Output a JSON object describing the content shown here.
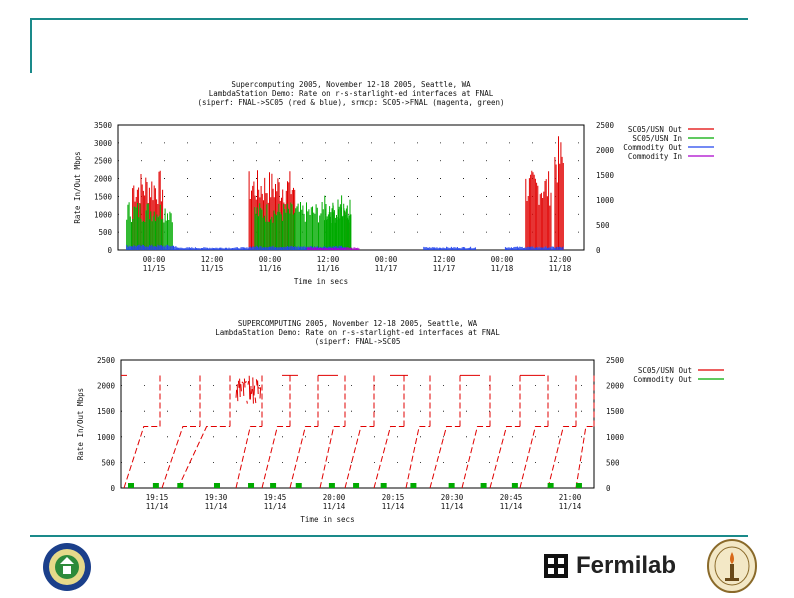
{
  "colors": {
    "accent_rule": "#1a8a8a",
    "red": "#e00000",
    "green": "#00aa00",
    "blue": "#2244ee",
    "magenta": "#aa00cc"
  },
  "footer": {
    "lab_name": "Fermilab"
  },
  "chart_data": [
    {
      "type": "line",
      "title_lines": [
        "Supercomputing 2005, November 12-18 2005, Seattle, WA",
        "LambdaStation Demo: Rate on r-s-starlight-ed interfaces at FNAL",
        "(siperf: FNAL->SC05 (red & blue), srmcp: SC05->FNAL (magenta, green)"
      ],
      "ylabel": "Rate In/Out Mbps",
      "xlabel": "Time in secs",
      "ylim": [
        0,
        3500
      ],
      "y2lim": [
        0,
        2500
      ],
      "yticks": [
        "3500",
        "3000",
        "2500",
        "2000",
        "1500",
        "1000",
        "500",
        "0"
      ],
      "y2ticks": [
        "2500",
        "2000",
        "1500",
        "1000",
        "500",
        "0"
      ],
      "xticks": [
        {
          "time": "00:00",
          "date": "11/15"
        },
        {
          "time": "12:00",
          "date": "11/15"
        },
        {
          "time": "00:00",
          "date": "11/16"
        },
        {
          "time": "12:00",
          "date": "11/16"
        },
        {
          "time": "00:00",
          "date": "11/17"
        },
        {
          "time": "12:00",
          "date": "11/17"
        },
        {
          "time": "00:00",
          "date": "11/18"
        },
        {
          "time": "12:00",
          "date": "11/18"
        }
      ],
      "series": [
        {
          "name": "SC05/USN Out",
          "color": "#e00000",
          "bursts": [
            [
              0.5,
              1.55,
              2250
            ],
            [
              4.5,
              6.1,
              2250
            ],
            [
              7.8,
              8.0,
              1150
            ],
            [
              14.0,
              14.9,
              2250
            ],
            [
              15.0,
              15.3,
              3200
            ]
          ]
        },
        {
          "name": "SC05/USN In",
          "color": "#00aa00",
          "bursts": [
            [
              0.3,
              1.9,
              1400
            ],
            [
              4.7,
              8.0,
              1350
            ],
            [
              7.1,
              8.0,
              1600
            ]
          ]
        },
        {
          "name": "Commodity Out",
          "color": "#2244ee",
          "bursts": [
            [
              0.3,
              2.0,
              150
            ],
            [
              2.0,
              4.5,
              80
            ],
            [
              4.5,
              7.8,
              120
            ],
            [
              10.5,
              12.3,
              90
            ],
            [
              13.3,
              15.3,
              100
            ]
          ]
        },
        {
          "name": "Commodity In",
          "color": "#aa00cc",
          "bursts": [
            [
              6.5,
              8.3,
              80
            ]
          ]
        }
      ]
    },
    {
      "type": "line",
      "title_lines": [
        "SUPERCOMPUTING 2005, November 12-18 2005, Seattle, WA",
        "LambdaStation Demo: Rate on r-s-starlight-ed interfaces at FNAL",
        "(siperf: FNAL->SC05"
      ],
      "ylabel": "Rate In/Out Mbps",
      "xlabel": "Time in secs",
      "ylim": [
        0,
        2500
      ],
      "y2lim": [
        0,
        2500
      ],
      "yticks": [
        "2500",
        "2000",
        "1500",
        "1000",
        "500",
        "0"
      ],
      "y2ticks": [
        "2500",
        "2000",
        "1500",
        "1000",
        "500",
        "0"
      ],
      "xticks": [
        {
          "time": "19:15",
          "date": "11/14"
        },
        {
          "time": "19:30",
          "date": "11/14"
        },
        {
          "time": "19:45",
          "date": "11/14"
        },
        {
          "time": "20:00",
          "date": "11/14"
        },
        {
          "time": "20:15",
          "date": "11/14"
        },
        {
          "time": "20:30",
          "date": "11/14"
        },
        {
          "time": "20:45",
          "date": "11/14"
        },
        {
          "time": "21:00",
          "date": "11/14"
        }
      ],
      "series": [
        {
          "name": "SC05/USN Out",
          "color": "#e00000"
        },
        {
          "name": "Commodity Out",
          "color": "#00aa00"
        }
      ]
    }
  ]
}
